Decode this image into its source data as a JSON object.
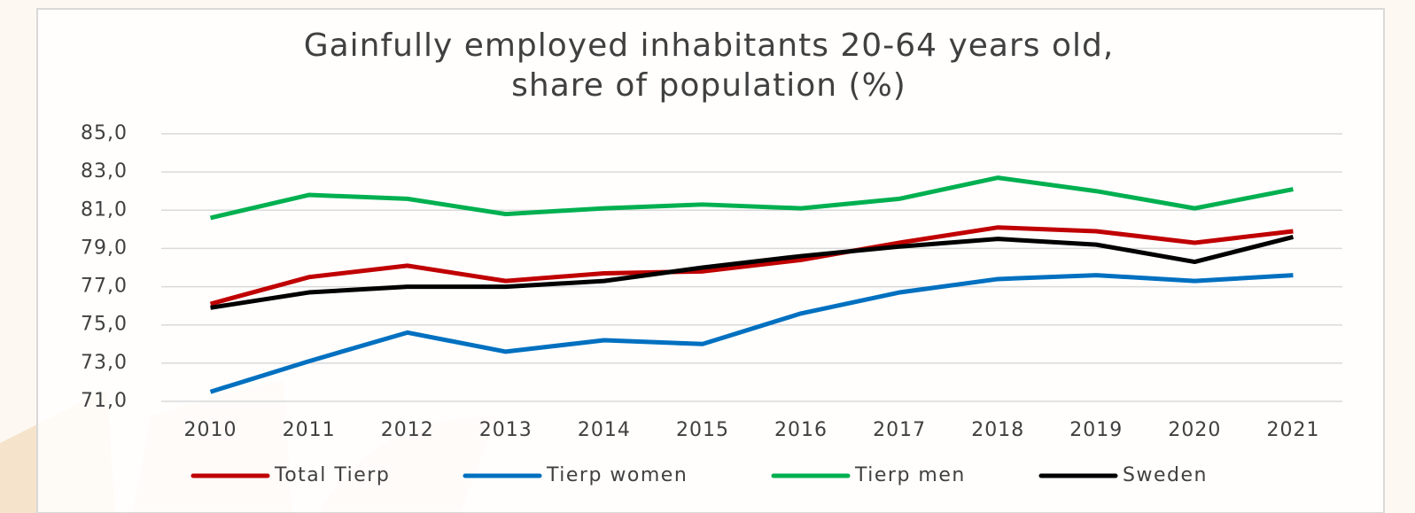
{
  "chart_data": {
    "type": "line",
    "title": [
      "Gainfully employed inhabitants 20-64 years old,",
      "share of population (%)"
    ],
    "categories": [
      "2010",
      "2011",
      "2012",
      "2013",
      "2014",
      "2015",
      "2016",
      "2017",
      "2018",
      "2019",
      "2020",
      "2021"
    ],
    "series": [
      {
        "name": "Total Tierp",
        "color": "#c00000",
        "values": [
          76.1,
          77.5,
          78.1,
          77.3,
          77.7,
          77.8,
          78.4,
          79.3,
          80.1,
          79.9,
          79.3,
          79.9
        ]
      },
      {
        "name": "Tierp women",
        "color": "#0070c0",
        "values": [
          71.5,
          73.1,
          74.6,
          73.6,
          74.2,
          74.0,
          75.6,
          76.7,
          77.4,
          77.6,
          77.3,
          77.6
        ]
      },
      {
        "name": "Tierp men",
        "color": "#00b050",
        "values": [
          80.6,
          81.8,
          81.6,
          80.8,
          81.1,
          81.3,
          81.1,
          81.6,
          82.7,
          82.0,
          81.1,
          82.1
        ]
      },
      {
        "name": "Sweden",
        "color": "#000000",
        "values": [
          75.9,
          76.7,
          77.0,
          77.0,
          77.3,
          78.0,
          78.6,
          79.1,
          79.5,
          79.2,
          78.3,
          79.6
        ]
      }
    ],
    "ylim": [
      71,
      85
    ],
    "yticks": [
      {
        "value": 71,
        "label": "71,0"
      },
      {
        "value": 73,
        "label": "73,0"
      },
      {
        "value": 75,
        "label": "75,0"
      },
      {
        "value": 77,
        "label": "77,0"
      },
      {
        "value": 79,
        "label": "79,0"
      },
      {
        "value": 81,
        "label": "81,0"
      },
      {
        "value": 83,
        "label": "83,0"
      },
      {
        "value": 85,
        "label": "85,0"
      }
    ],
    "grid": true,
    "legend": "bottom"
  }
}
